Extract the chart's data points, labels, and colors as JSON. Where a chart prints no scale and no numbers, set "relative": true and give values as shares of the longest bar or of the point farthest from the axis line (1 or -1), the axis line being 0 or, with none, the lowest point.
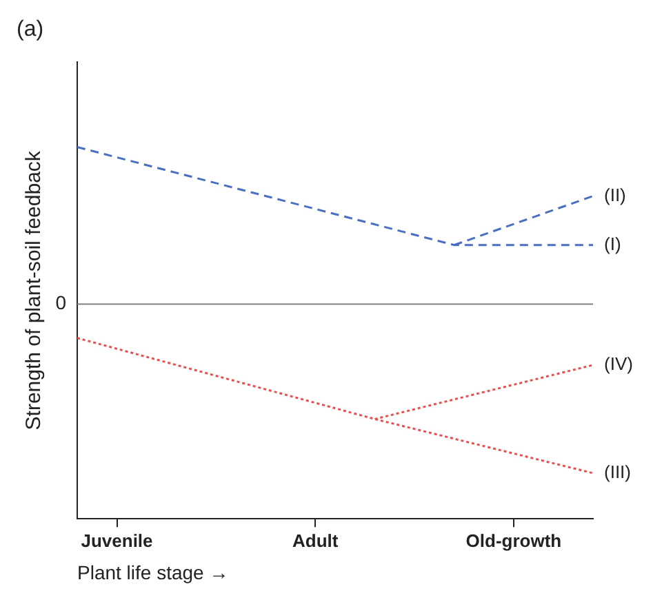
{
  "chart_data": {
    "type": "line",
    "title": "(a)",
    "xlabel": "Plant life stage →",
    "ylabel": "Strength of plant-soil feedback",
    "relative": true,
    "categories": [
      null,
      null,
      "Juvenile",
      null,
      null,
      null,
      null,
      null,
      null,
      null,
      null,
      null,
      "Adult",
      null,
      null,
      null,
      null,
      null,
      null,
      null,
      null,
      null,
      "Old-growth",
      null,
      null,
      null,
      null
    ],
    "series": [
      {
        "name": "(I)",
        "color": "#4a6fc0",
        "line_style": "dashed",
        "values": [
          0.93,
          null,
          null,
          null,
          null,
          null,
          null,
          null,
          null,
          null,
          null,
          null,
          null,
          null,
          null,
          null,
          null,
          null,
          null,
          0.35,
          null,
          null,
          null,
          null,
          null,
          null,
          0.35
        ]
      },
      {
        "name": "(II)",
        "color": "#4a6fc0",
        "line_style": "dashed",
        "values": [
          null,
          null,
          null,
          null,
          null,
          null,
          null,
          null,
          null,
          null,
          null,
          null,
          null,
          null,
          null,
          null,
          null,
          null,
          null,
          0.35,
          null,
          null,
          null,
          null,
          null,
          null,
          0.64
        ]
      },
      {
        "name": "(III)",
        "color": "#e8504f",
        "line_style": "dotted",
        "values": [
          -0.2,
          null,
          null,
          null,
          null,
          null,
          null,
          null,
          null,
          null,
          null,
          null,
          null,
          null,
          null,
          -0.68,
          null,
          null,
          null,
          null,
          null,
          null,
          null,
          null,
          null,
          null,
          -1
        ]
      },
      {
        "name": "(IV)",
        "color": "#e8504f",
        "line_style": "dotted",
        "values": [
          null,
          null,
          null,
          null,
          null,
          null,
          null,
          null,
          null,
          null,
          null,
          null,
          null,
          null,
          null,
          -0.68,
          null,
          null,
          null,
          null,
          null,
          null,
          null,
          null,
          null,
          null,
          -0.36
        ]
      }
    ],
    "ref_lines": [
      {
        "axis": "y",
        "value": 0,
        "label": "0",
        "color": "#808080"
      }
    ],
    "grid": false,
    "legend": false,
    "marker": "none"
  }
}
